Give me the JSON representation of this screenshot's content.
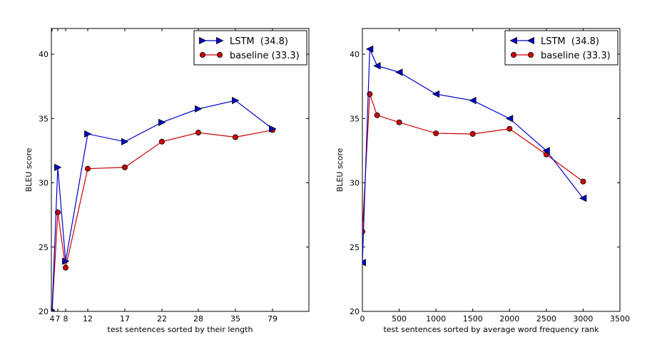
{
  "chart_data": [
    {
      "type": "line",
      "title": "",
      "xlabel": "test sentences sorted by their length",
      "ylabel": "BLEU score",
      "ylim": [
        20,
        42
      ],
      "x_categories": [
        "4",
        "7",
        "8",
        "12",
        "17",
        "22",
        "28",
        "35",
        "79"
      ],
      "x_categories_label_visibility": "all",
      "y_ticks": [
        20,
        25,
        30,
        35,
        40
      ],
      "legend_position": "top-right",
      "series": [
        {
          "name": "LSTM  (34.8)",
          "color": "#0000cc",
          "marker": "triangle-right",
          "values": [
            20,
            31.2,
            23.9,
            33.8,
            33.2,
            34.7,
            35.75,
            36.4,
            34.2
          ]
        },
        {
          "name": "baseline (33.3)",
          "color": "#cc0000",
          "marker": "circle",
          "values": [
            20,
            27.7,
            23.4,
            31.1,
            31.2,
            33.2,
            33.9,
            33.55,
            34.1
          ]
        }
      ]
    },
    {
      "type": "line",
      "title": "",
      "xlabel": "test sentences sorted by average word frequency rank",
      "ylabel": "BLEU score",
      "xlim": [
        0,
        3500
      ],
      "ylim": [
        20,
        42
      ],
      "x_ticks": [
        0,
        500,
        1000,
        1500,
        2000,
        2500,
        3000,
        3500
      ],
      "y_ticks": [
        20,
        25,
        30,
        35,
        40
      ],
      "legend_position": "top-right",
      "series": [
        {
          "name": "LSTM  (34.8)",
          "color": "#0000cc",
          "marker": "triangle-left",
          "x": [
            0,
            100,
            200,
            500,
            1000,
            1500,
            2000,
            2500,
            3000
          ],
          "y": [
            23.8,
            40.4,
            39.1,
            38.6,
            36.9,
            36.4,
            35.0,
            32.5,
            28.8
          ]
        },
        {
          "name": "baseline (33.3)",
          "color": "#cc0000",
          "marker": "circle",
          "x": [
            0,
            100,
            200,
            500,
            1000,
            1500,
            2000,
            2500,
            3000
          ],
          "y": [
            26.2,
            36.9,
            35.25,
            34.7,
            33.85,
            33.8,
            34.2,
            32.2,
            30.1
          ]
        }
      ]
    }
  ]
}
